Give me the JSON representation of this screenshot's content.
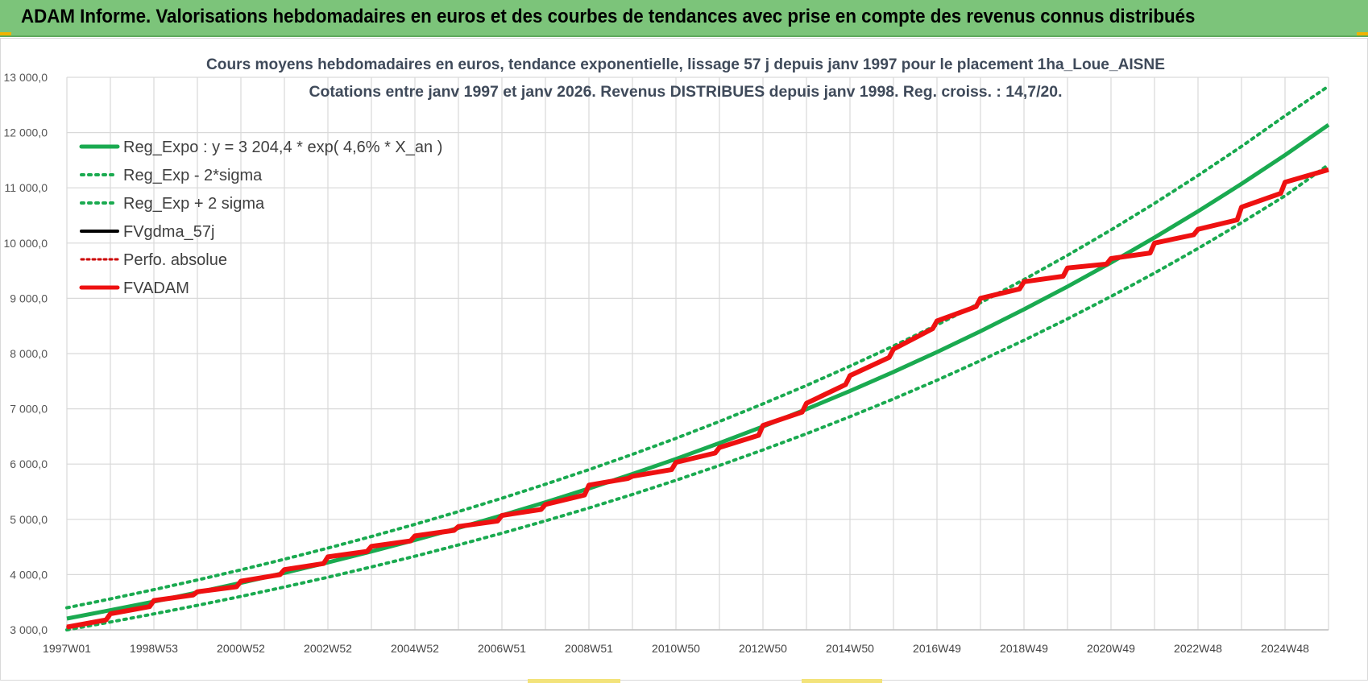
{
  "header": {
    "title": "ADAM Informe. Valorisations hebdomadaires en euros et des courbes de tendances avec prise en compte des revenus connus distribués"
  },
  "colors": {
    "header_bg": "#7cc47a",
    "trend_green": "#1aaa50",
    "fvadam_red": "#ee1111",
    "fvgdma_black": "#000000",
    "perfo_red": "#cc0000",
    "grid": "#d9d9d9"
  },
  "chart_data": {
    "type": "line",
    "title": "Cours moyens hebdomadaires en euros, tendance exponentielle, lissage 57 j depuis janv 1997  pour le placement 1ha_Loue_AISNE",
    "subtitle": "Cotations entre janv 1997 et janv 2026. Revenus DISTRIBUES depuis janv 1998.  Reg. croiss. : 14,7/20.",
    "xlabel": "",
    "ylabel": "",
    "x_range": [
      1997.0,
      2026.0
    ],
    "ylim": [
      3000,
      13000
    ],
    "y_ticks": [
      3000,
      4000,
      5000,
      6000,
      7000,
      8000,
      9000,
      10000,
      11000,
      12000,
      13000
    ],
    "y_tick_labels": [
      "3 000,0",
      "4 000,0",
      "5 000,0",
      "6 000,0",
      "7 000,0",
      "8 000,0",
      "9 000,0",
      "10 000,0",
      "11 000,0",
      "12 000,0",
      "13 000,0"
    ],
    "x_tick_labels": [
      "1997W01",
      "1998W53",
      "2000W52",
      "2002W52",
      "2004W52",
      "2006W51",
      "2008W51",
      "2010W50",
      "2012W50",
      "2014W50",
      "2016W49",
      "2018W49",
      "2020W49",
      "2022W48",
      "2024W48"
    ],
    "x_tick_positions": [
      1997.0,
      1999.0,
      2001.0,
      2003.0,
      2005.0,
      2007.0,
      2009.0,
      2011.0,
      2013.0,
      2015.0,
      2017.0,
      2019.0,
      2021.0,
      2023.0,
      2025.0
    ],
    "grid": true,
    "legend_position": "top-left",
    "legend": [
      {
        "label": "Reg_Expo : y = 3 204,4 * exp( 4,6% *  X_an )",
        "style": "solid-green"
      },
      {
        "label": "Reg_Exp - 2*sigma",
        "style": "dotted-green"
      },
      {
        "label": "Reg_Exp + 2 sigma",
        "style": "dotted-green"
      },
      {
        "label": "FVgdma_57j",
        "style": "solid-black"
      },
      {
        "label": "Perfo. absolue",
        "style": "dotted-red"
      },
      {
        "label": "FVADAM",
        "style": "solid-red"
      }
    ],
    "series": [
      {
        "name": "Reg_Expo : y = 3 204,4 * exp( 4,6% *  X_an )",
        "x": [
          1997,
          1998,
          1999,
          2000,
          2001,
          2002,
          2003,
          2004,
          2005,
          2006,
          2007,
          2008,
          2009,
          2010,
          2011,
          2012,
          2013,
          2014,
          2015,
          2016,
          2017,
          2018,
          2019,
          2020,
          2021,
          2022,
          2023,
          2024,
          2025,
          2026
        ],
        "values": [
          3204,
          3355,
          3512,
          3677,
          3850,
          4031,
          4220,
          4419,
          4626,
          4844,
          5071,
          5309,
          5559,
          5820,
          6094,
          6380,
          6680,
          6994,
          7323,
          7667,
          8028,
          8405,
          8800,
          9213,
          9646,
          10100,
          10575,
          11072,
          11592,
          12140
        ]
      },
      {
        "name": "Reg_Exp - 2*sigma",
        "x": [
          1997,
          1998,
          1999,
          2000,
          2001,
          2002,
          2003,
          2004,
          2005,
          2006,
          2007,
          2008,
          2009,
          2010,
          2011,
          2012,
          2013,
          2014,
          2015,
          2016,
          2017,
          2018,
          2019,
          2020,
          2021,
          2022,
          2023,
          2024,
          2025,
          2026
        ],
        "values": [
          3000,
          3141,
          3289,
          3443,
          3605,
          3775,
          3952,
          4138,
          4332,
          4536,
          4749,
          4972,
          5206,
          5451,
          5707,
          5975,
          6256,
          6550,
          6858,
          7180,
          7518,
          7871,
          8241,
          8628,
          9034,
          9458,
          9903,
          10369,
          10856,
          11420
        ]
      },
      {
        "name": "Reg_Exp + 2 sigma",
        "x": [
          1997,
          1998,
          1999,
          2000,
          2001,
          2002,
          2003,
          2004,
          2005,
          2006,
          2007,
          2008,
          2009,
          2010,
          2011,
          2012,
          2013,
          2014,
          2015,
          2016,
          2017,
          2018,
          2019,
          2020,
          2021,
          2022,
          2023,
          2024,
          2025,
          2026
        ],
        "values": [
          3400,
          3560,
          3727,
          3902,
          4086,
          4278,
          4479,
          4689,
          4910,
          5140,
          5382,
          5635,
          5900,
          6177,
          6467,
          6771,
          7090,
          7423,
          7772,
          8137,
          8519,
          8920,
          9339,
          9778,
          10238,
          10719,
          11223,
          11750,
          12303,
          12840
        ]
      },
      {
        "name": "FVgdma_57j",
        "x": [
          1997.0,
          1997.9,
          1998.0,
          1998.9,
          1999.0,
          1999.9,
          2000.0,
          2000.9,
          2001.0,
          2001.9,
          2002.0,
          2002.9,
          2003.0,
          2003.9,
          2004.0,
          2004.9,
          2005.0,
          2005.9,
          2006.0,
          2006.9,
          2007.0,
          2007.9,
          2008.0,
          2008.9,
          2009.0,
          2009.9,
          2010.0,
          2010.9,
          2011.0,
          2011.9,
          2012.0,
          2012.9,
          2013.0,
          2013.9,
          2014.0,
          2014.9,
          2015.0,
          2015.9,
          2016.0,
          2016.9,
          2017.0,
          2017.9,
          2018.0,
          2018.9,
          2019.0,
          2019.9,
          2020.0,
          2020.9,
          2021.0,
          2021.9,
          2022.0,
          2022.9,
          2023.0,
          2023.9,
          2024.0,
          2024.9,
          2025.0,
          2026.0
        ],
        "values": [
          3050,
          3180,
          3290,
          3420,
          3530,
          3630,
          3690,
          3780,
          3880,
          4000,
          4090,
          4200,
          4320,
          4420,
          4510,
          4610,
          4700,
          4800,
          4870,
          4970,
          5070,
          5180,
          5270,
          5440,
          5620,
          5740,
          5780,
          5900,
          6030,
          6200,
          6300,
          6520,
          6700,
          6940,
          7100,
          7440,
          7600,
          7930,
          8080,
          8450,
          8590,
          8850,
          9000,
          9170,
          9300,
          9400,
          9550,
          9620,
          9720,
          9820,
          10000,
          10150,
          10250,
          10420,
          10650,
          10900,
          11100,
          11330
        ]
      },
      {
        "name": "Perfo. absolue",
        "x": [
          1997.0,
          1997.9,
          1998.0,
          1998.9,
          1999.0,
          1999.9,
          2000.0,
          2000.9,
          2001.0,
          2001.9,
          2002.0,
          2002.9,
          2003.0,
          2003.9,
          2004.0,
          2004.9,
          2005.0,
          2005.9,
          2006.0,
          2006.9,
          2007.0,
          2007.9,
          2008.0,
          2008.9,
          2009.0,
          2009.9,
          2010.0,
          2010.9,
          2011.0,
          2011.9,
          2012.0,
          2012.9,
          2013.0,
          2013.9,
          2014.0,
          2014.9,
          2015.0,
          2015.9,
          2016.0,
          2016.9,
          2017.0,
          2017.9,
          2018.0,
          2018.9,
          2019.0,
          2019.9,
          2020.0,
          2020.9,
          2021.0,
          2021.9,
          2022.0,
          2022.9,
          2023.0,
          2023.9,
          2024.0,
          2024.9,
          2025.0,
          2026.0
        ],
        "values": [
          3050,
          3180,
          3290,
          3420,
          3530,
          3630,
          3690,
          3780,
          3880,
          4000,
          4090,
          4200,
          4320,
          4420,
          4510,
          4610,
          4700,
          4800,
          4870,
          4970,
          5070,
          5180,
          5270,
          5440,
          5620,
          5740,
          5780,
          5900,
          6030,
          6200,
          6300,
          6520,
          6700,
          6940,
          7100,
          7440,
          7600,
          7930,
          8080,
          8450,
          8590,
          8850,
          9000,
          9170,
          9300,
          9400,
          9550,
          9620,
          9720,
          9820,
          10000,
          10150,
          10250,
          10420,
          10650,
          10900,
          11100,
          11330
        ]
      },
      {
        "name": "FVADAM",
        "x": [
          1997.0,
          1997.9,
          1998.0,
          1998.9,
          1999.0,
          1999.9,
          2000.0,
          2000.9,
          2001.0,
          2001.9,
          2002.0,
          2002.9,
          2003.0,
          2003.9,
          2004.0,
          2004.9,
          2005.0,
          2005.9,
          2006.0,
          2006.9,
          2007.0,
          2007.9,
          2008.0,
          2008.9,
          2009.0,
          2009.9,
          2010.0,
          2010.9,
          2011.0,
          2011.9,
          2012.0,
          2012.9,
          2013.0,
          2013.9,
          2014.0,
          2014.9,
          2015.0,
          2015.9,
          2016.0,
          2016.9,
          2017.0,
          2017.9,
          2018.0,
          2018.9,
          2019.0,
          2019.9,
          2020.0,
          2020.9,
          2021.0,
          2021.9,
          2022.0,
          2022.9,
          2023.0,
          2023.9,
          2024.0,
          2024.9,
          2025.0,
          2026.0
        ],
        "values": [
          3050,
          3180,
          3290,
          3420,
          3530,
          3630,
          3690,
          3780,
          3880,
          4000,
          4090,
          4200,
          4320,
          4420,
          4510,
          4610,
          4700,
          4800,
          4870,
          4970,
          5070,
          5180,
          5270,
          5440,
          5620,
          5740,
          5780,
          5900,
          6030,
          6200,
          6300,
          6520,
          6700,
          6940,
          7100,
          7440,
          7600,
          7930,
          8080,
          8450,
          8590,
          8850,
          9000,
          9170,
          9300,
          9400,
          9550,
          9620,
          9720,
          9820,
          10000,
          10150,
          10250,
          10420,
          10650,
          10900,
          11100,
          11330
        ]
      }
    ]
  }
}
